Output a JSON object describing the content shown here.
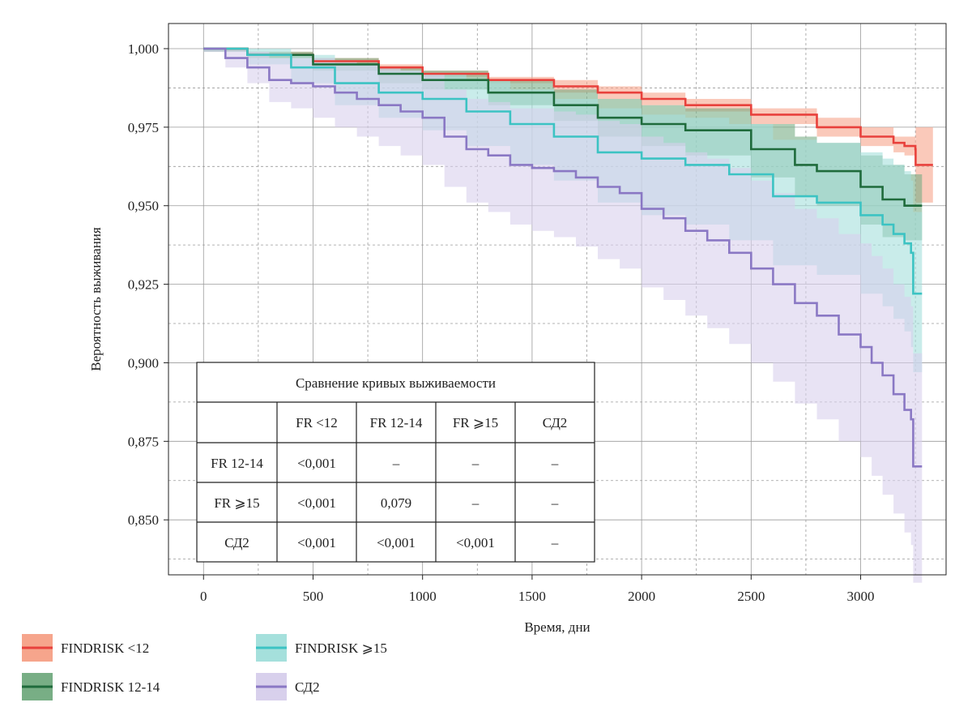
{
  "chart_data": {
    "type": "line",
    "subtype": "kaplan-meier survival curves with confidence bands",
    "xlabel": "Время, дни",
    "ylabel": "Вероятность выживания",
    "xlim": [
      -160,
      3390
    ],
    "ylim": [
      0.8325,
      1.008
    ],
    "x_ticks": [
      0,
      500,
      1000,
      1500,
      2000,
      2500,
      3000
    ],
    "x_tick_labels": [
      "0",
      "500",
      "1000",
      "1500",
      "2000",
      "2500",
      "3000"
    ],
    "y_ticks": [
      0.85,
      0.875,
      0.9,
      0.925,
      0.95,
      0.975,
      1.0
    ],
    "y_tick_labels": [
      "0,850",
      "0,875",
      "0,900",
      "0,925",
      "0,950",
      "0,975",
      "1,000"
    ],
    "grid": true,
    "legend_position": "bottom-left",
    "series": [
      {
        "name": "FINDRISK <12",
        "line_color": "#e8413c",
        "band_color": "#f6a58c",
        "x": [
          0,
          200,
          500,
          800,
          1000,
          1300,
          1600,
          1800,
          2000,
          2200,
          2500,
          2800,
          3000,
          3150,
          3200,
          3250,
          3251,
          3330
        ],
        "y": [
          1.0,
          0.998,
          0.996,
          0.994,
          0.992,
          0.99,
          0.988,
          0.986,
          0.984,
          0.982,
          0.979,
          0.975,
          0.972,
          0.97,
          0.969,
          0.968,
          0.963,
          0.963
        ],
        "lower": [
          0.999,
          0.997,
          0.995,
          0.993,
          0.991,
          0.989,
          0.986,
          0.984,
          0.982,
          0.98,
          0.976,
          0.972,
          0.969,
          0.967,
          0.966,
          0.965,
          0.951,
          0.951
        ],
        "upper": [
          1.0,
          0.999,
          0.997,
          0.995,
          0.993,
          0.991,
          0.99,
          0.988,
          0.986,
          0.984,
          0.981,
          0.978,
          0.975,
          0.972,
          0.972,
          0.971,
          0.975,
          0.975
        ]
      },
      {
        "name": "FINDRISK 12-14",
        "line_color": "#1f6b3c",
        "band_color": "#78ae85",
        "x": [
          0,
          200,
          500,
          800,
          1000,
          1300,
          1600,
          1800,
          2000,
          2200,
          2500,
          2700,
          2800,
          3000,
          3100,
          3200,
          3280
        ],
        "y": [
          1.0,
          0.998,
          0.995,
          0.992,
          0.99,
          0.986,
          0.982,
          0.978,
          0.976,
          0.974,
          0.968,
          0.963,
          0.961,
          0.956,
          0.952,
          0.95,
          0.95
        ],
        "lower": [
          0.999,
          0.997,
          0.993,
          0.989,
          0.987,
          0.982,
          0.977,
          0.972,
          0.969,
          0.966,
          0.959,
          0.953,
          0.95,
          0.944,
          0.94,
          0.939,
          0.939
        ],
        "upper": [
          1.0,
          0.999,
          0.997,
          0.994,
          0.993,
          0.99,
          0.987,
          0.984,
          0.982,
          0.981,
          0.976,
          0.972,
          0.97,
          0.966,
          0.963,
          0.96,
          0.96
        ]
      },
      {
        "name": "FINDRISK ⩾15",
        "line_color": "#3cc3c3",
        "band_color": "#a5e0dc",
        "x": [
          0,
          200,
          400,
          600,
          800,
          1000,
          1200,
          1400,
          1600,
          1800,
          2000,
          2200,
          2400,
          2600,
          2800,
          3000,
          3100,
          3150,
          3200,
          3230,
          3240,
          3280
        ],
        "y": [
          1.0,
          0.998,
          0.994,
          0.989,
          0.986,
          0.984,
          0.98,
          0.976,
          0.972,
          0.967,
          0.965,
          0.963,
          0.96,
          0.953,
          0.951,
          0.947,
          0.944,
          0.941,
          0.938,
          0.935,
          0.922,
          0.922
        ],
        "lower": [
          0.999,
          0.995,
          0.989,
          0.982,
          0.978,
          0.974,
          0.969,
          0.963,
          0.958,
          0.951,
          0.947,
          0.944,
          0.939,
          0.931,
          0.928,
          0.922,
          0.918,
          0.914,
          0.91,
          0.905,
          0.897,
          0.897
        ],
        "upper": [
          1.0,
          1.0,
          0.998,
          0.995,
          0.993,
          0.992,
          0.99,
          0.987,
          0.984,
          0.981,
          0.979,
          0.978,
          0.976,
          0.971,
          0.97,
          0.967,
          0.965,
          0.963,
          0.961,
          0.958,
          0.948,
          0.948
        ]
      },
      {
        "name": "СД2",
        "line_color": "#8a78c4",
        "band_color": "#d8d0ec",
        "x": [
          0,
          100,
          200,
          300,
          400,
          500,
          600,
          700,
          800,
          900,
          1000,
          1100,
          1200,
          1300,
          1400,
          1500,
          1600,
          1700,
          1800,
          1900,
          2000,
          2100,
          2200,
          2300,
          2400,
          2500,
          2600,
          2700,
          2800,
          2900,
          3000,
          3050,
          3100,
          3150,
          3200,
          3230,
          3240,
          3280
        ],
        "y": [
          1.0,
          0.997,
          0.994,
          0.99,
          0.989,
          0.988,
          0.986,
          0.984,
          0.982,
          0.98,
          0.978,
          0.972,
          0.968,
          0.966,
          0.963,
          0.962,
          0.961,
          0.959,
          0.956,
          0.954,
          0.949,
          0.946,
          0.942,
          0.939,
          0.935,
          0.93,
          0.925,
          0.919,
          0.915,
          0.909,
          0.905,
          0.9,
          0.896,
          0.89,
          0.885,
          0.882,
          0.867,
          0.867
        ],
        "lower": [
          0.999,
          0.994,
          0.989,
          0.983,
          0.981,
          0.978,
          0.975,
          0.972,
          0.969,
          0.966,
          0.963,
          0.956,
          0.951,
          0.948,
          0.944,
          0.942,
          0.94,
          0.937,
          0.933,
          0.93,
          0.924,
          0.92,
          0.915,
          0.911,
          0.906,
          0.9,
          0.894,
          0.887,
          0.882,
          0.875,
          0.87,
          0.864,
          0.858,
          0.852,
          0.846,
          0.842,
          0.83,
          0.83
        ],
        "upper": [
          1.0,
          1.0,
          0.999,
          0.997,
          0.997,
          0.997,
          0.996,
          0.995,
          0.994,
          0.993,
          0.992,
          0.987,
          0.984,
          0.983,
          0.981,
          0.981,
          0.98,
          0.979,
          0.977,
          0.976,
          0.972,
          0.97,
          0.967,
          0.965,
          0.962,
          0.958,
          0.954,
          0.949,
          0.946,
          0.941,
          0.938,
          0.934,
          0.93,
          0.925,
          0.921,
          0.918,
          0.903,
          0.903
        ]
      }
    ],
    "comparison_table": {
      "title": "Сравнение кривых выживаемости",
      "columns": [
        "",
        "FR <12",
        "FR 12-14",
        "FR ⩾15",
        "СД2"
      ],
      "rows": [
        [
          "FR 12-14",
          "<0,001",
          "–",
          "–",
          "–"
        ],
        [
          "FR ⩾15",
          "<0,001",
          "0,079",
          "–",
          "–"
        ],
        [
          "СД2",
          "<0,001",
          "<0,001",
          "<0,001",
          "–"
        ]
      ]
    }
  }
}
